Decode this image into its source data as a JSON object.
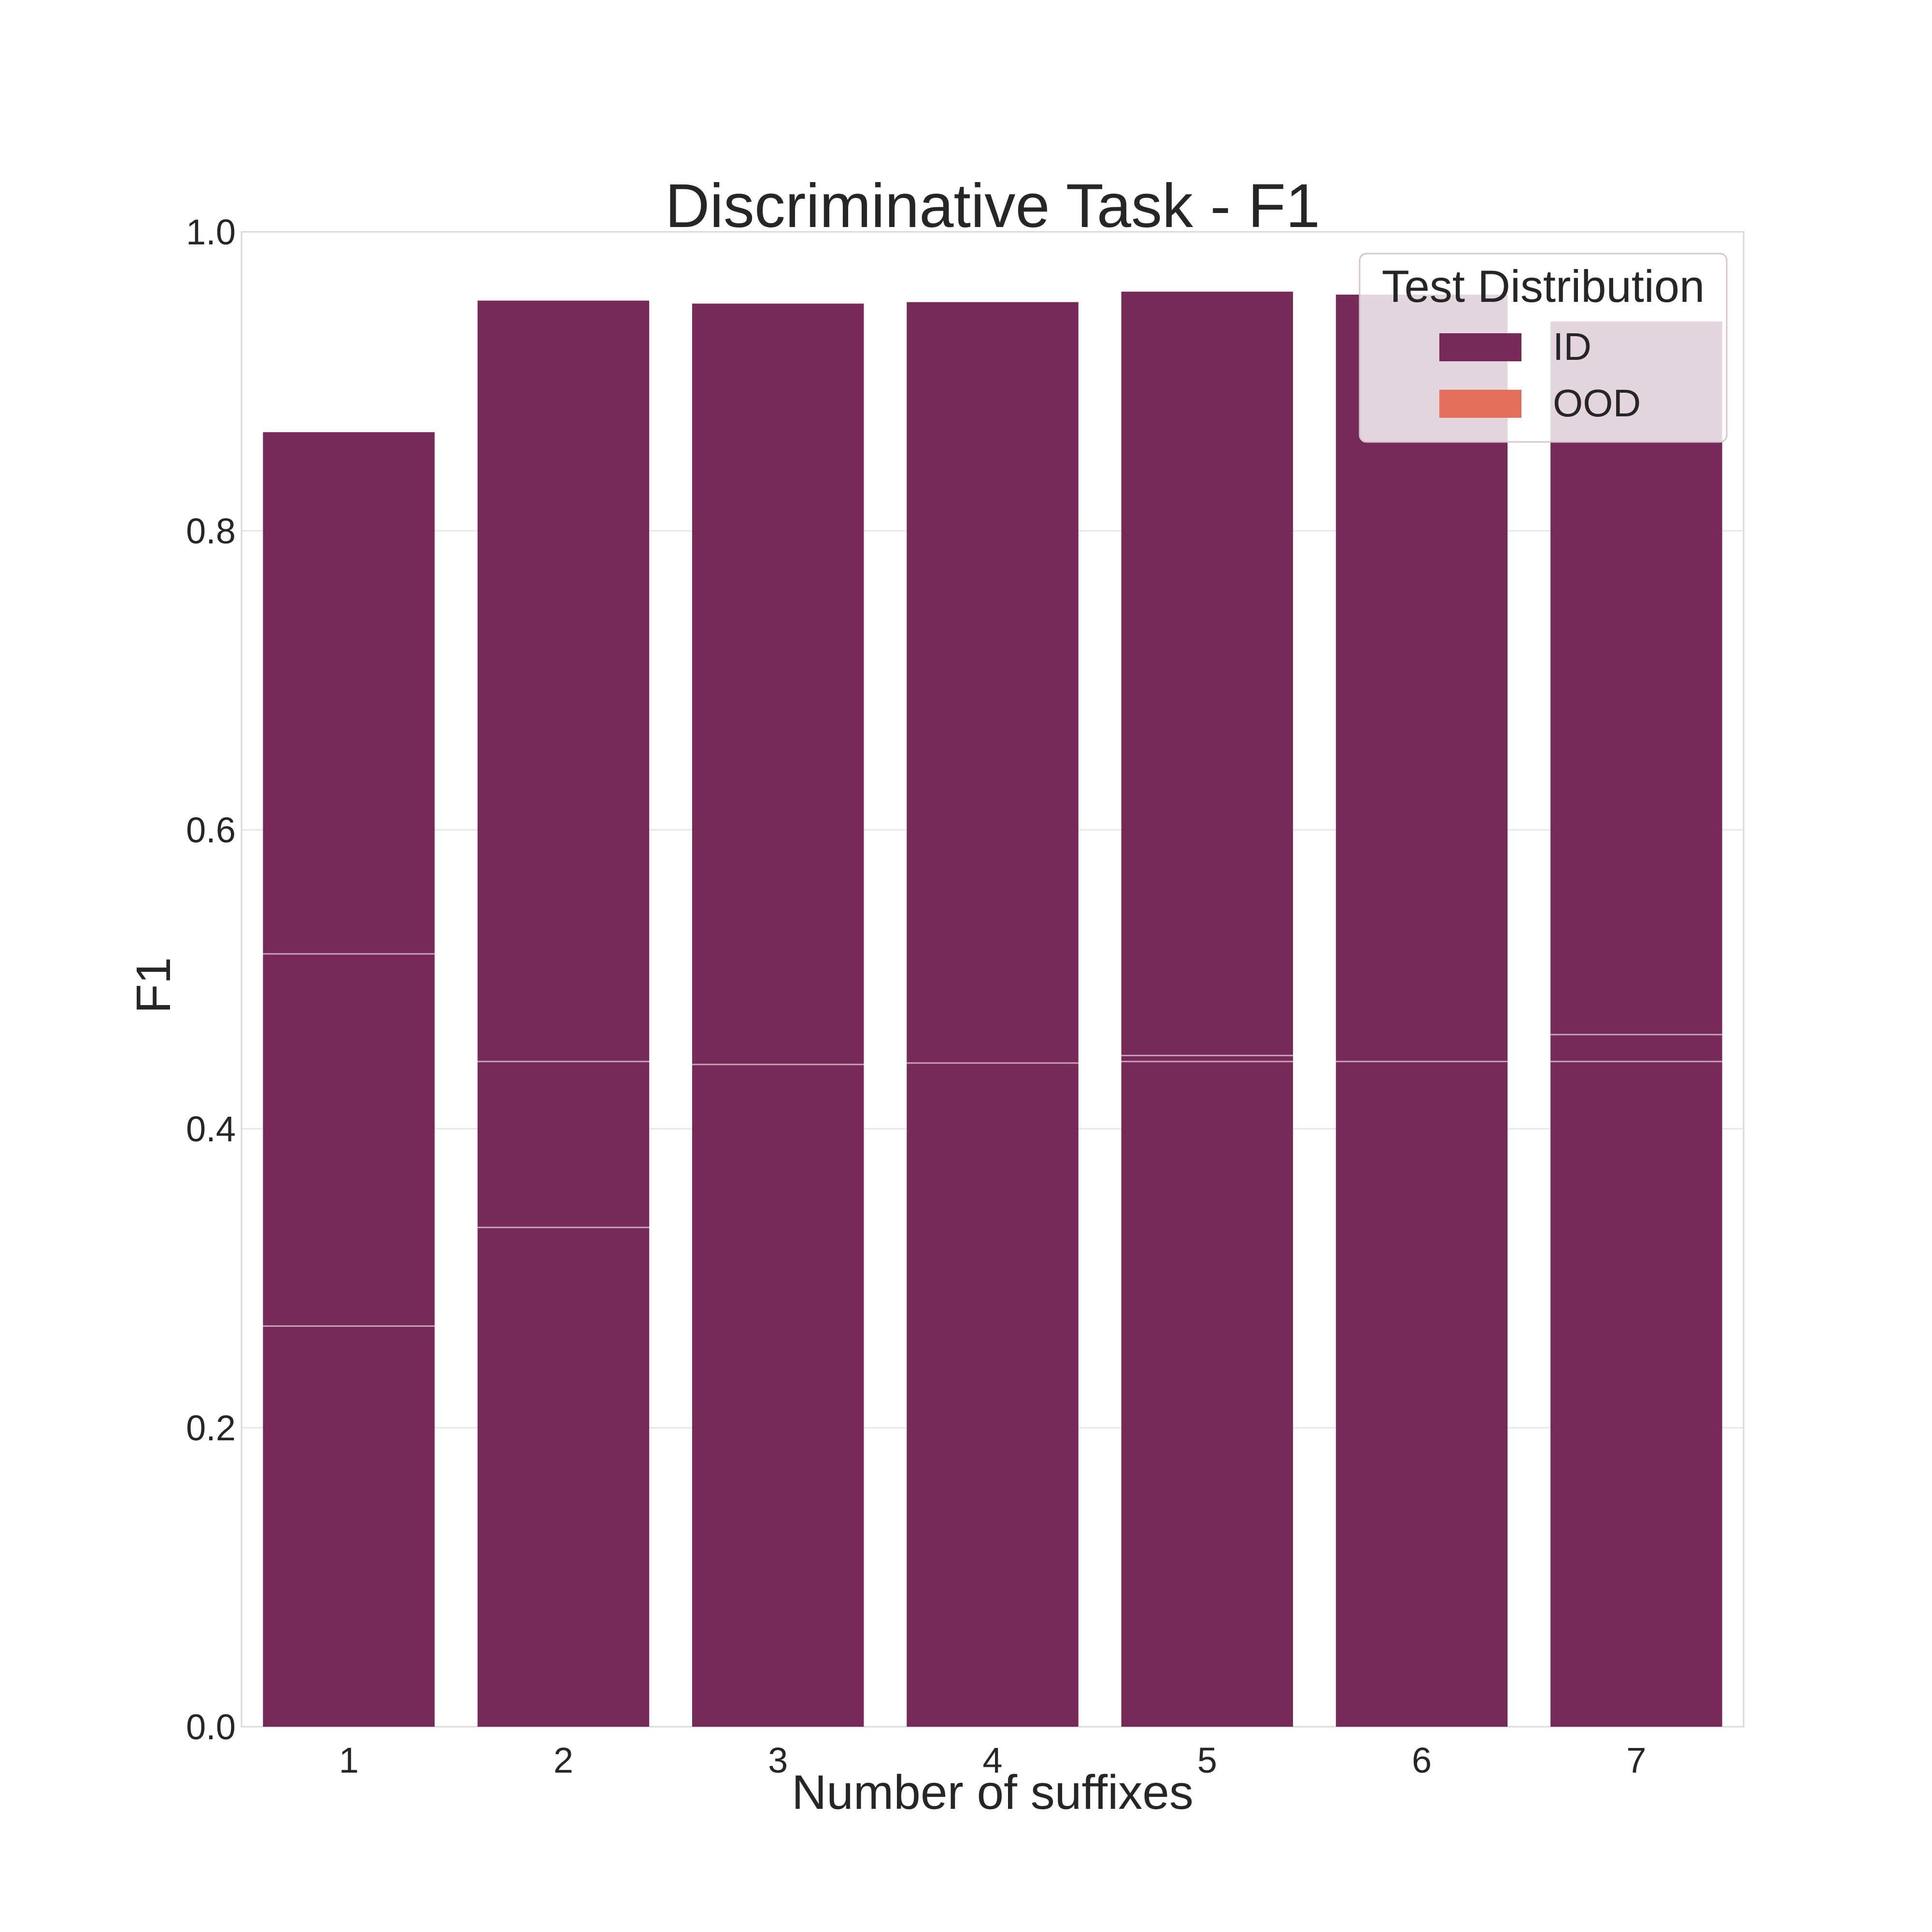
{
  "chart_data": {
    "type": "bar",
    "title": "Discriminative Task - F1",
    "xlabel": "Number of suffixes",
    "ylabel": "F1",
    "ylim": [
      0.0,
      1.0
    ],
    "yticks": [
      "0.0",
      "0.2",
      "0.4",
      "0.6",
      "0.8",
      "1.0"
    ],
    "categories": [
      "1",
      "2",
      "3",
      "4",
      "5",
      "6",
      "7"
    ],
    "grid": true,
    "legend": {
      "title": "Test Distribution",
      "placement": "top-right",
      "entries": [
        {
          "label": "ID",
          "color": "#772a58"
        },
        {
          "label": "OOD",
          "color": "#e2705c"
        }
      ]
    },
    "series": [
      {
        "name": "ID",
        "color": "#772a58",
        "values": [
          0.866,
          0.954,
          0.952,
          0.953,
          0.96,
          0.958,
          0.94
        ]
      }
    ],
    "segment_lines": [
      [
        0.268,
        0.517
      ],
      [
        0.334,
        0.445
      ],
      [
        0.443
      ],
      [
        0.444
      ],
      [
        0.445,
        0.449
      ],
      [
        0.445
      ],
      [
        0.445,
        0.463
      ]
    ]
  }
}
